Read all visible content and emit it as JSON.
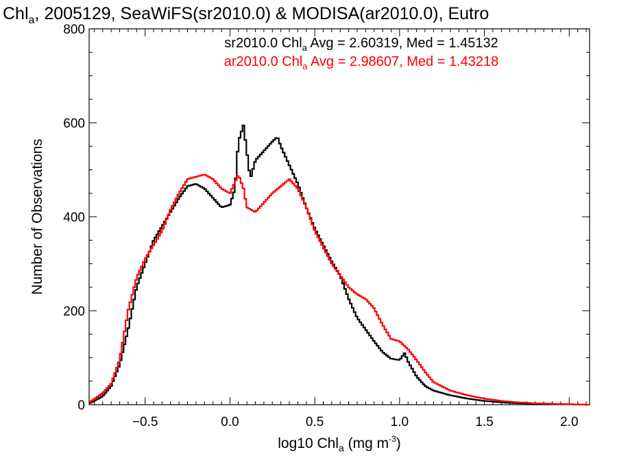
{
  "chart_data": {
    "type": "step-histogram",
    "title": {
      "main": "Chl",
      "sub": "a",
      "rest": ", 2005129, SeaWiFS(sr2010.0) & MODISA(ar2010.0), Eutro"
    },
    "xlabel": {
      "main": "log10 Chl",
      "sub": "a",
      "rest": " (mg m",
      "sup": "-3",
      "close": ")"
    },
    "ylabel": "Number of Observations",
    "xlim": [
      -0.83,
      2.12
    ],
    "ylim": [
      0,
      800
    ],
    "x_ticks": [
      -0.5,
      0.0,
      0.5,
      1.0,
      1.5,
      2.0
    ],
    "x_tick_labels": [
      "−0.5",
      "0.0",
      "0.5",
      "1.0",
      "1.5",
      "2.0"
    ],
    "y_ticks": [
      0,
      200,
      400,
      600,
      800
    ],
    "y_tick_labels": [
      "0",
      "200",
      "400",
      "600",
      "800"
    ],
    "legend_placement": "top-center",
    "series": [
      {
        "name": "sr2010.0",
        "color": "#000000",
        "stat_line": {
          "main": "sr2010.0 Chl",
          "sub": "a",
          "rest": " Avg = 2.60319, Med = 1.45132"
        },
        "points": [
          [
            -0.83,
            3
          ],
          [
            -0.8,
            8
          ],
          [
            -0.75,
            18
          ],
          [
            -0.7,
            40
          ],
          [
            -0.65,
            85
          ],
          [
            -0.6,
            160
          ],
          [
            -0.55,
            250
          ],
          [
            -0.5,
            300
          ],
          [
            -0.45,
            350
          ],
          [
            -0.4,
            380
          ],
          [
            -0.35,
            410
          ],
          [
            -0.3,
            440
          ],
          [
            -0.25,
            465
          ],
          [
            -0.2,
            470
          ],
          [
            -0.15,
            460
          ],
          [
            -0.1,
            440
          ],
          [
            -0.05,
            420
          ],
          [
            0.0,
            425
          ],
          [
            0.03,
            460
          ],
          [
            0.05,
            560
          ],
          [
            0.08,
            595
          ],
          [
            0.12,
            480
          ],
          [
            0.15,
            520
          ],
          [
            0.2,
            540
          ],
          [
            0.25,
            560
          ],
          [
            0.28,
            570
          ],
          [
            0.3,
            550
          ],
          [
            0.35,
            510
          ],
          [
            0.4,
            470
          ],
          [
            0.45,
            420
          ],
          [
            0.5,
            375
          ],
          [
            0.55,
            340
          ],
          [
            0.6,
            305
          ],
          [
            0.65,
            275
          ],
          [
            0.7,
            225
          ],
          [
            0.75,
            185
          ],
          [
            0.8,
            160
          ],
          [
            0.85,
            135
          ],
          [
            0.9,
            112
          ],
          [
            0.95,
            98
          ],
          [
            1.0,
            95
          ],
          [
            1.03,
            110
          ],
          [
            1.05,
            92
          ],
          [
            1.1,
            60
          ],
          [
            1.15,
            40
          ],
          [
            1.2,
            30
          ],
          [
            1.3,
            20
          ],
          [
            1.4,
            13
          ],
          [
            1.5,
            8
          ],
          [
            1.6,
            5
          ],
          [
            1.7,
            3
          ],
          [
            1.8,
            2
          ],
          [
            2.0,
            1
          ],
          [
            2.1,
            0
          ]
        ]
      },
      {
        "name": "ar2010.0",
        "color": "#ff0000",
        "stat_line": {
          "main": "ar2010.0 Chl",
          "sub": "a",
          "rest": " Avg = 2.98607, Med = 1.43218"
        },
        "points": [
          [
            -0.83,
            5
          ],
          [
            -0.8,
            12
          ],
          [
            -0.75,
            25
          ],
          [
            -0.7,
            45
          ],
          [
            -0.65,
            95
          ],
          [
            -0.6,
            200
          ],
          [
            -0.55,
            270
          ],
          [
            -0.5,
            310
          ],
          [
            -0.45,
            340
          ],
          [
            -0.4,
            370
          ],
          [
            -0.35,
            415
          ],
          [
            -0.3,
            450
          ],
          [
            -0.25,
            480
          ],
          [
            -0.2,
            485
          ],
          [
            -0.15,
            490
          ],
          [
            -0.1,
            480
          ],
          [
            -0.05,
            460
          ],
          [
            0.0,
            450
          ],
          [
            0.05,
            490
          ],
          [
            0.08,
            460
          ],
          [
            0.1,
            420
          ],
          [
            0.15,
            410
          ],
          [
            0.2,
            430
          ],
          [
            0.25,
            450
          ],
          [
            0.3,
            465
          ],
          [
            0.35,
            480
          ],
          [
            0.4,
            460
          ],
          [
            0.45,
            420
          ],
          [
            0.5,
            370
          ],
          [
            0.55,
            335
          ],
          [
            0.6,
            300
          ],
          [
            0.65,
            275
          ],
          [
            0.7,
            250
          ],
          [
            0.75,
            235
          ],
          [
            0.8,
            225
          ],
          [
            0.85,
            205
          ],
          [
            0.9,
            170
          ],
          [
            0.95,
            140
          ],
          [
            1.0,
            135
          ],
          [
            1.05,
            118
          ],
          [
            1.1,
            95
          ],
          [
            1.15,
            70
          ],
          [
            1.2,
            48
          ],
          [
            1.3,
            30
          ],
          [
            1.4,
            20
          ],
          [
            1.5,
            13
          ],
          [
            1.6,
            8
          ],
          [
            1.7,
            5
          ],
          [
            1.8,
            3
          ],
          [
            1.9,
            2
          ],
          [
            2.0,
            1
          ],
          [
            2.1,
            0
          ]
        ]
      }
    ]
  }
}
